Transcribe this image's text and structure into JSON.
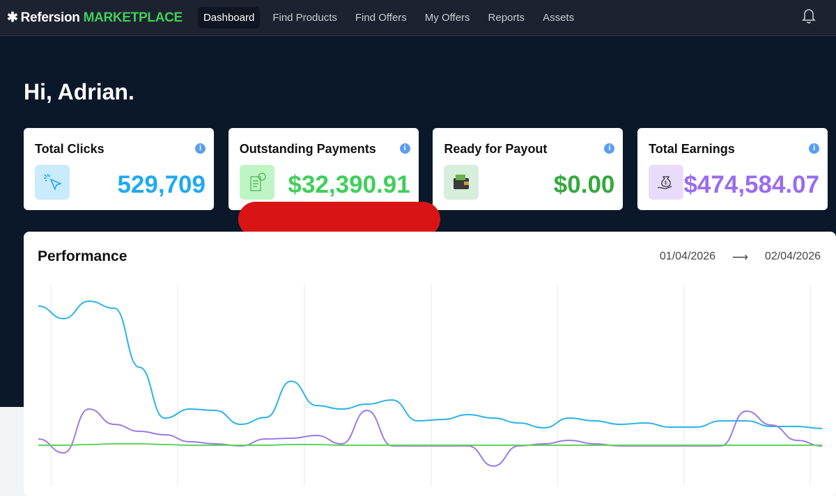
{
  "nav": {
    "brand": "Refersion",
    "brand_accent": "MARKETPLACE",
    "items": [
      {
        "label": "Dashboard",
        "active": true
      },
      {
        "label": "Find Products"
      },
      {
        "label": "Find Offers"
      },
      {
        "label": "My Offers"
      },
      {
        "label": "Reports"
      },
      {
        "label": "Assets"
      }
    ],
    "icons": [
      "bell-icon"
    ]
  },
  "greeting": "Hi, Adrian.",
  "cards": [
    {
      "title": "Total Clicks",
      "value": "529,709",
      "color": "#1eaaf1",
      "icon": "cursor-click-icon",
      "icon_bg": "#c9ebfb"
    },
    {
      "title": "Outstanding Payments",
      "value": "$32,390.91",
      "color": "#3fcf5a",
      "icon": "receipt-dollar-icon",
      "icon_bg": "#bff5c4"
    },
    {
      "title": "Ready for Payout",
      "value": "$0.00",
      "color": "#35a83e",
      "icon": "wallet-icon",
      "icon_bg": "#d6eedb"
    },
    {
      "title": "Total Earnings",
      "value": "$474,584.07",
      "color": "#9a6cf0",
      "icon": "money-bag-hand-icon",
      "icon_bg": "#e9dcfb"
    }
  ],
  "performance": {
    "title": "Performance",
    "date_from": "01/04/2026",
    "date_to": "02/04/2026",
    "arrow": "⟶"
  },
  "chart_data": {
    "type": "line",
    "grid": "vertical",
    "series": [
      {
        "color": "#2bb3e8",
        "values": [
          203,
          185,
          210,
          200,
          115,
          42,
          55,
          53,
          33,
          43,
          95,
          60,
          55,
          62,
          68,
          38,
          40,
          47,
          42,
          35,
          28,
          42,
          38,
          33,
          35,
          29,
          29,
          38,
          38,
          30,
          30,
          27
        ]
      },
      {
        "color": "#9b7ae6",
        "values": [
          12,
          -8,
          55,
          33,
          23,
          18,
          8,
          5,
          2,
          12,
          13,
          17,
          5,
          53,
          2,
          2,
          2,
          2,
          -27,
          2,
          5,
          10,
          5,
          2,
          2,
          2,
          2,
          2,
          52,
          32,
          10,
          2
        ]
      },
      {
        "color": "#5fd35f",
        "values": [
          3,
          3,
          4,
          5,
          5,
          4,
          3,
          3,
          3,
          3,
          4,
          4,
          3,
          3,
          3,
          3,
          3,
          3,
          3,
          3,
          3,
          3,
          3,
          3,
          3,
          3,
          3,
          3,
          3,
          3,
          3,
          3
        ]
      }
    ]
  }
}
